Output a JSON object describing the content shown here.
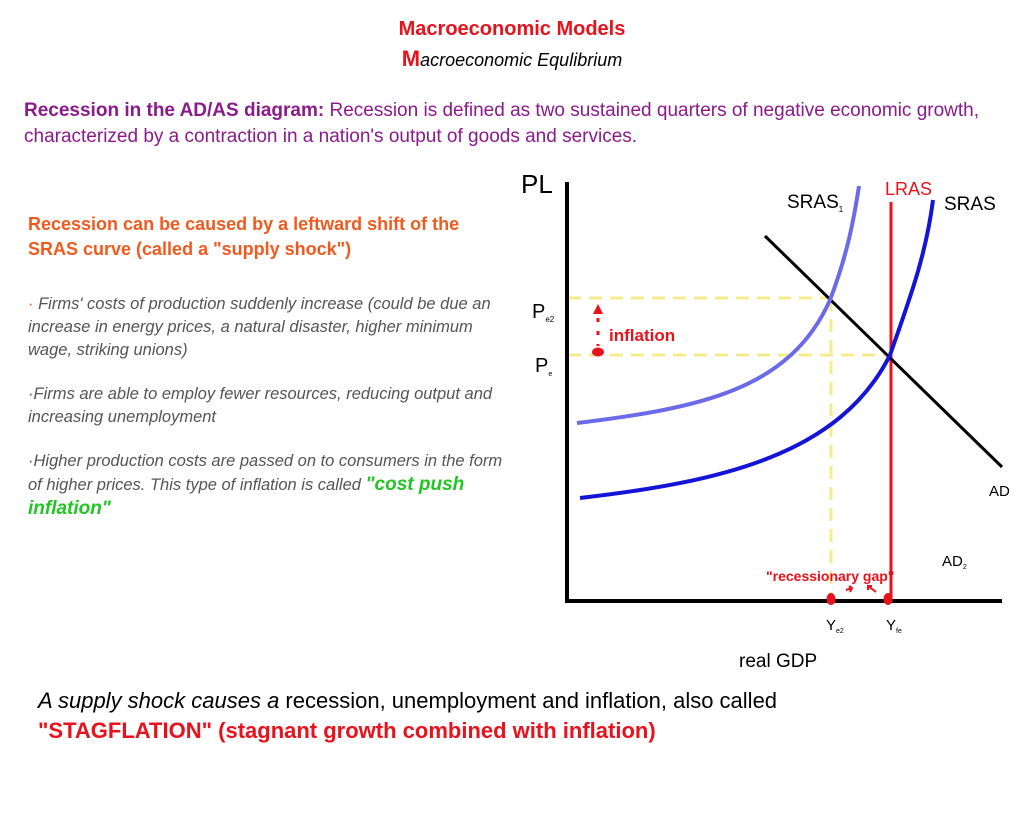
{
  "header": {
    "title": "Macroeconomic Models",
    "subtitle_cap": "M",
    "subtitle_rest": "acroeconomic Equlibrium"
  },
  "intro": {
    "lead": "Recession in the AD/AS diagram:",
    "text": " Recession is defined as two sustained quarters of negative economic growth, characterized by a contraction in a nation's output of goods and services."
  },
  "cause": "Recession can be caused by a leftward shift of the SRAS curve (called a \"supply shock\")",
  "bullets": [
    {
      "dot": "·",
      "text": " Firms' costs of production suddenly increase (could be due an increase in energy prices, a natural disaster, higher minimum wage, striking unions)"
    },
    {
      "dot": "·",
      "text": "Firms are able to employ fewer resources, reducing output and increasing unemployment"
    },
    {
      "dot": "·",
      "text": "Higher production costs are passed on to consumers in the form of higher prices. This type of inflation is called ",
      "highlight": "\"cost push inflation\""
    }
  ],
  "diagram": {
    "y_axis_label": "PL",
    "x_axis_label": "real GDP",
    "sras1": {
      "label": "SRAS",
      "sub": "1"
    },
    "sras": "SRAS",
    "lras": "LRAS",
    "ad": "AD",
    "ad2": {
      "label": "AD",
      "sub": "2"
    },
    "pe2": {
      "label": "P",
      "sub": "e2"
    },
    "pe": {
      "label": "P",
      "sub": "e"
    },
    "ye2": {
      "label": "Y",
      "sub": "e2"
    },
    "yfe": {
      "label": "Y",
      "sub": "fe"
    },
    "inflation": "inflation",
    "gap": "\"recessionary gap\"",
    "colors": {
      "sras1": "#6b6bea",
      "sras": "#1414d8",
      "lras": "#e8121c",
      "ad": "#000000",
      "guides": "#f4ec8c",
      "annotation": "#e8121c"
    }
  },
  "conclusion": {
    "italic": "A supply shock causes a",
    "normal": " recession, unemployment and inflation, also called",
    "stagflation": "\"STAGFLATION\" (stagnant growth combined with inflation)"
  }
}
